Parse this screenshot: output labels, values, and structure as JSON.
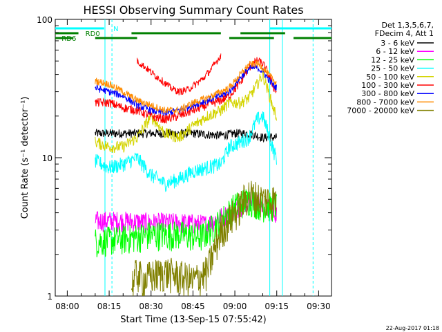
{
  "chart_data": {
    "type": "line",
    "title": "HESSI Observing Summary Count Rates",
    "xlabel": "Start Time (13-Sep-15 07:55:42)",
    "ylabel": "Count Rate (s⁻¹ detector⁻¹)",
    "ylog": true,
    "ylim": [
      1,
      100
    ],
    "xlim_minutes": [
      -4.3,
      34.6
    ],
    "x_ticks": [
      {
        "min": 0,
        "label": "08:00"
      },
      {
        "min": 15,
        "label": "08:15"
      },
      {
        "min": 30,
        "label": "08:30"
      },
      {
        "min": 45,
        "label": "08:45"
      },
      {
        "min": 60,
        "label": "09:00"
      },
      {
        "min": 75,
        "label": "09:15"
      },
      {
        "min": 90,
        "label": "09:30"
      }
    ],
    "y_ticks": [
      {
        "value": 1,
        "label": "1"
      },
      {
        "value": 10,
        "label": "10"
      },
      {
        "value": 100,
        "label": "100"
      }
    ],
    "legend_header": [
      "Det 1,3,5,6,7,",
      "FDecim 4, Att 1"
    ],
    "legend_position": "right",
    "series": [
      {
        "name": "3 - 6 keV",
        "color": "#000000",
        "points": [
          [
            10,
            15
          ],
          [
            15,
            15
          ],
          [
            30,
            15
          ],
          [
            45,
            15
          ],
          [
            55,
            14.5
          ],
          [
            60,
            15
          ],
          [
            65,
            15
          ],
          [
            70,
            14
          ],
          [
            75,
            14
          ]
        ]
      },
      {
        "name": "6 - 12 keV",
        "color": "#ff00ff",
        "points": [
          [
            10,
            3.5
          ],
          [
            20,
            3.5
          ],
          [
            30,
            3.4
          ],
          [
            40,
            3.4
          ],
          [
            50,
            3.3
          ],
          [
            58,
            4
          ],
          [
            62,
            4.5
          ],
          [
            66,
            5
          ],
          [
            70,
            4.5
          ],
          [
            75,
            4
          ]
        ]
      },
      {
        "name": "12 - 25 keV",
        "color": "#00ff00",
        "points": [
          [
            10,
            2.5
          ],
          [
            20,
            2.6
          ],
          [
            30,
            2.8
          ],
          [
            40,
            2.8
          ],
          [
            48,
            2.7
          ],
          [
            55,
            3.5
          ],
          [
            60,
            4.5
          ],
          [
            65,
            5
          ],
          [
            70,
            4.5
          ],
          [
            75,
            4.5
          ]
        ]
      },
      {
        "name": "25 - 50 keV",
        "color": "#00ffff",
        "points": [
          [
            10,
            9.5
          ],
          [
            15,
            8.5
          ],
          [
            20,
            9
          ],
          [
            25,
            10
          ],
          [
            30,
            7.5
          ],
          [
            35,
            6.5
          ],
          [
            40,
            7
          ],
          [
            45,
            8
          ],
          [
            50,
            8.5
          ],
          [
            55,
            9
          ],
          [
            58,
            12
          ],
          [
            62,
            13
          ],
          [
            65,
            14
          ],
          [
            68,
            19
          ],
          [
            70,
            20
          ],
          [
            72,
            15
          ],
          [
            74,
            11
          ],
          [
            75,
            10
          ]
        ]
      },
      {
        "name": "50 - 100 keV",
        "color": "#d4d400",
        "points": [
          [
            10,
            13
          ],
          [
            15,
            12
          ],
          [
            20,
            12
          ],
          [
            25,
            14
          ],
          [
            30,
            20
          ],
          [
            35,
            15
          ],
          [
            40,
            14
          ],
          [
            45,
            17
          ],
          [
            50,
            20
          ],
          [
            55,
            22
          ],
          [
            58,
            25
          ],
          [
            62,
            25
          ],
          [
            65,
            27
          ],
          [
            68,
            34
          ],
          [
            70,
            40
          ],
          [
            72,
            30
          ],
          [
            74,
            22
          ],
          [
            75,
            20
          ]
        ]
      },
      {
        "name": "100 - 300 keV",
        "color": "#ff0000",
        "points": [
          [
            10,
            25
          ],
          [
            15,
            25
          ],
          [
            20,
            23
          ],
          [
            25,
            22
          ],
          [
            30,
            20
          ],
          [
            35,
            19
          ],
          [
            40,
            20
          ],
          [
            45,
            22
          ],
          [
            50,
            24
          ],
          [
            55,
            26
          ],
          [
            58,
            28
          ],
          [
            62,
            35
          ],
          [
            65,
            45
          ],
          [
            68,
            50
          ],
          [
            70,
            48
          ],
          [
            72,
            40
          ],
          [
            74,
            32
          ],
          [
            75,
            30
          ]
        ]
      },
      {
        "name": "300 - 800 keV",
        "color": "#0000ff",
        "points": [
          [
            10,
            32
          ],
          [
            15,
            30
          ],
          [
            20,
            28
          ],
          [
            25,
            24
          ],
          [
            30,
            22
          ],
          [
            35,
            21
          ],
          [
            40,
            22
          ],
          [
            45,
            24
          ],
          [
            50,
            26
          ],
          [
            55,
            28
          ],
          [
            58,
            30
          ],
          [
            62,
            38
          ],
          [
            65,
            44
          ],
          [
            68,
            45
          ],
          [
            70,
            42
          ],
          [
            72,
            37
          ],
          [
            74,
            33
          ],
          [
            75,
            32
          ]
        ]
      },
      {
        "name": "800 - 7000 keV",
        "color": "#ff8c00",
        "points": [
          [
            10,
            36
          ],
          [
            15,
            34
          ],
          [
            20,
            30
          ],
          [
            25,
            26
          ],
          [
            30,
            24
          ],
          [
            35,
            22
          ],
          [
            40,
            22
          ],
          [
            45,
            25
          ],
          [
            50,
            27
          ],
          [
            55,
            30
          ],
          [
            58,
            32
          ],
          [
            62,
            40
          ],
          [
            65,
            47
          ],
          [
            68,
            48
          ],
          [
            70,
            45
          ],
          [
            72,
            40
          ],
          [
            74,
            36
          ],
          [
            75,
            35
          ]
        ]
      },
      {
        "name": "7000 - 20000 keV",
        "color": "#808000",
        "points": [
          [
            23,
            1.2
          ],
          [
            25,
            1.5
          ],
          [
            27,
            1.3
          ],
          [
            30,
            1.4
          ],
          [
            35,
            1.5
          ],
          [
            40,
            1.4
          ],
          [
            45,
            1.3
          ],
          [
            50,
            1.5
          ],
          [
            55,
            3
          ],
          [
            60,
            4
          ],
          [
            65,
            5.5
          ],
          [
            70,
            5
          ],
          [
            75,
            5
          ]
        ]
      }
    ],
    "red_hump": {
      "name": "100 - 300 keV (flare segment)",
      "color": "#ff0000",
      "points": [
        [
          25,
          50
        ],
        [
          28,
          45
        ],
        [
          31,
          40
        ],
        [
          34,
          36
        ],
        [
          37,
          32
        ],
        [
          40,
          30
        ],
        [
          43,
          31
        ],
        [
          46,
          34
        ],
        [
          49,
          38
        ],
        [
          52,
          45
        ],
        [
          55,
          55
        ]
      ]
    },
    "attenuator_bars": [
      {
        "label": "RD0",
        "color": "#008000"
      },
      {
        "label": "RD6",
        "color": "#008000"
      },
      {
        "label": "N",
        "color": "#00ffff"
      }
    ],
    "vertical_markers": [
      {
        "min": 13.5,
        "color": "#00ffff",
        "style": "solid"
      },
      {
        "min": 16.0,
        "color": "#00ffff",
        "style": "dashed"
      },
      {
        "min": 72.5,
        "color": "#00ffff",
        "style": "solid"
      },
      {
        "min": 77.0,
        "color": "#00ffff",
        "style": "solid"
      },
      {
        "min": 88.0,
        "color": "#00ffff",
        "style": "dashed"
      }
    ]
  },
  "footer_timestamp": "22-Aug-2017 01:18"
}
